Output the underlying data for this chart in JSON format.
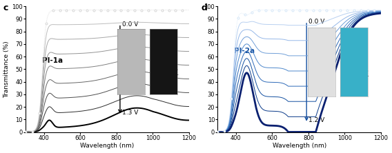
{
  "panel_c_label": "c",
  "panel_d_label": "d",
  "xlim": [
    300,
    1200
  ],
  "ylim": [
    0,
    100
  ],
  "xlabel": "Wavelength (nm)",
  "ylabel": "Transmittance (%)",
  "xticks": [
    400,
    600,
    800,
    1000,
    1200
  ],
  "yticks": [
    0,
    10,
    20,
    30,
    40,
    50,
    60,
    70,
    80,
    90,
    100
  ],
  "label_c": "PI-1a",
  "label_d": "PI-2a",
  "voltage_top_c": "0.0 V",
  "voltage_bot_c": "1.3 V",
  "voltage_top_d": "0.0 V",
  "voltage_bot_d": "1.2 V",
  "n_steps": 9,
  "gray_colors": [
    "0.82",
    "0.74",
    "0.66",
    "0.58",
    "0.50",
    "0.40",
    "0.30",
    "0.18",
    "0.0"
  ],
  "blue_colors": [
    "#d0e4f7",
    "#b8d0f0",
    "#96b8e8",
    "#709fd8",
    "#4e88cc",
    "#2e6ab8",
    "#1450a0",
    "#083888",
    "#0a2070"
  ],
  "inset_c_left_color": "#b8b8b8",
  "inset_c_right_color": "#151515",
  "inset_d_left_color": "#e0e0e0",
  "inset_d_right_color": "#38b0c8"
}
